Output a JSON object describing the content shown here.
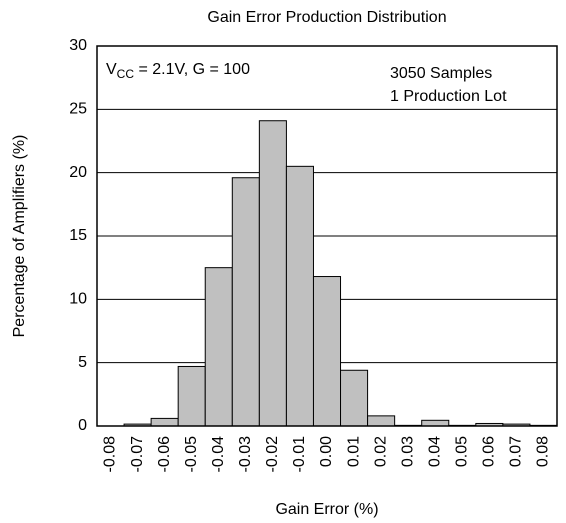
{
  "chart_data": {
    "type": "bar",
    "title": "Gain Error Production Distribution",
    "x_label": "Gain Error (%)",
    "y_label": "Percentage of Amplifiers (%)",
    "annotation_condition": {
      "main": "V",
      "sub": "CC",
      "rest": " = 2.1V, G = 100"
    },
    "annotations": [
      "3050 Samples",
      "1 Production Lot"
    ],
    "categories": [
      "-0.08",
      "-0.07",
      "-0.06",
      "-0.05",
      "-0.04",
      "-0.03",
      "-0.02",
      "-0.01",
      "0.00",
      "0.01",
      "0.02",
      "0.03",
      "0.04",
      "0.05",
      "0.06",
      "0.07",
      "0.08"
    ],
    "values": [
      0,
      0.15,
      0.6,
      4.7,
      12.5,
      19.6,
      24.1,
      20.5,
      11.8,
      4.4,
      0.8,
      0.05,
      0.45,
      0.05,
      0.2,
      0.15,
      0.05
    ],
    "color": "#c0c0c0",
    "ylim": [
      0,
      30
    ],
    "yticks": [
      0,
      5,
      10,
      15,
      20,
      25,
      30
    ],
    "grid": true
  }
}
